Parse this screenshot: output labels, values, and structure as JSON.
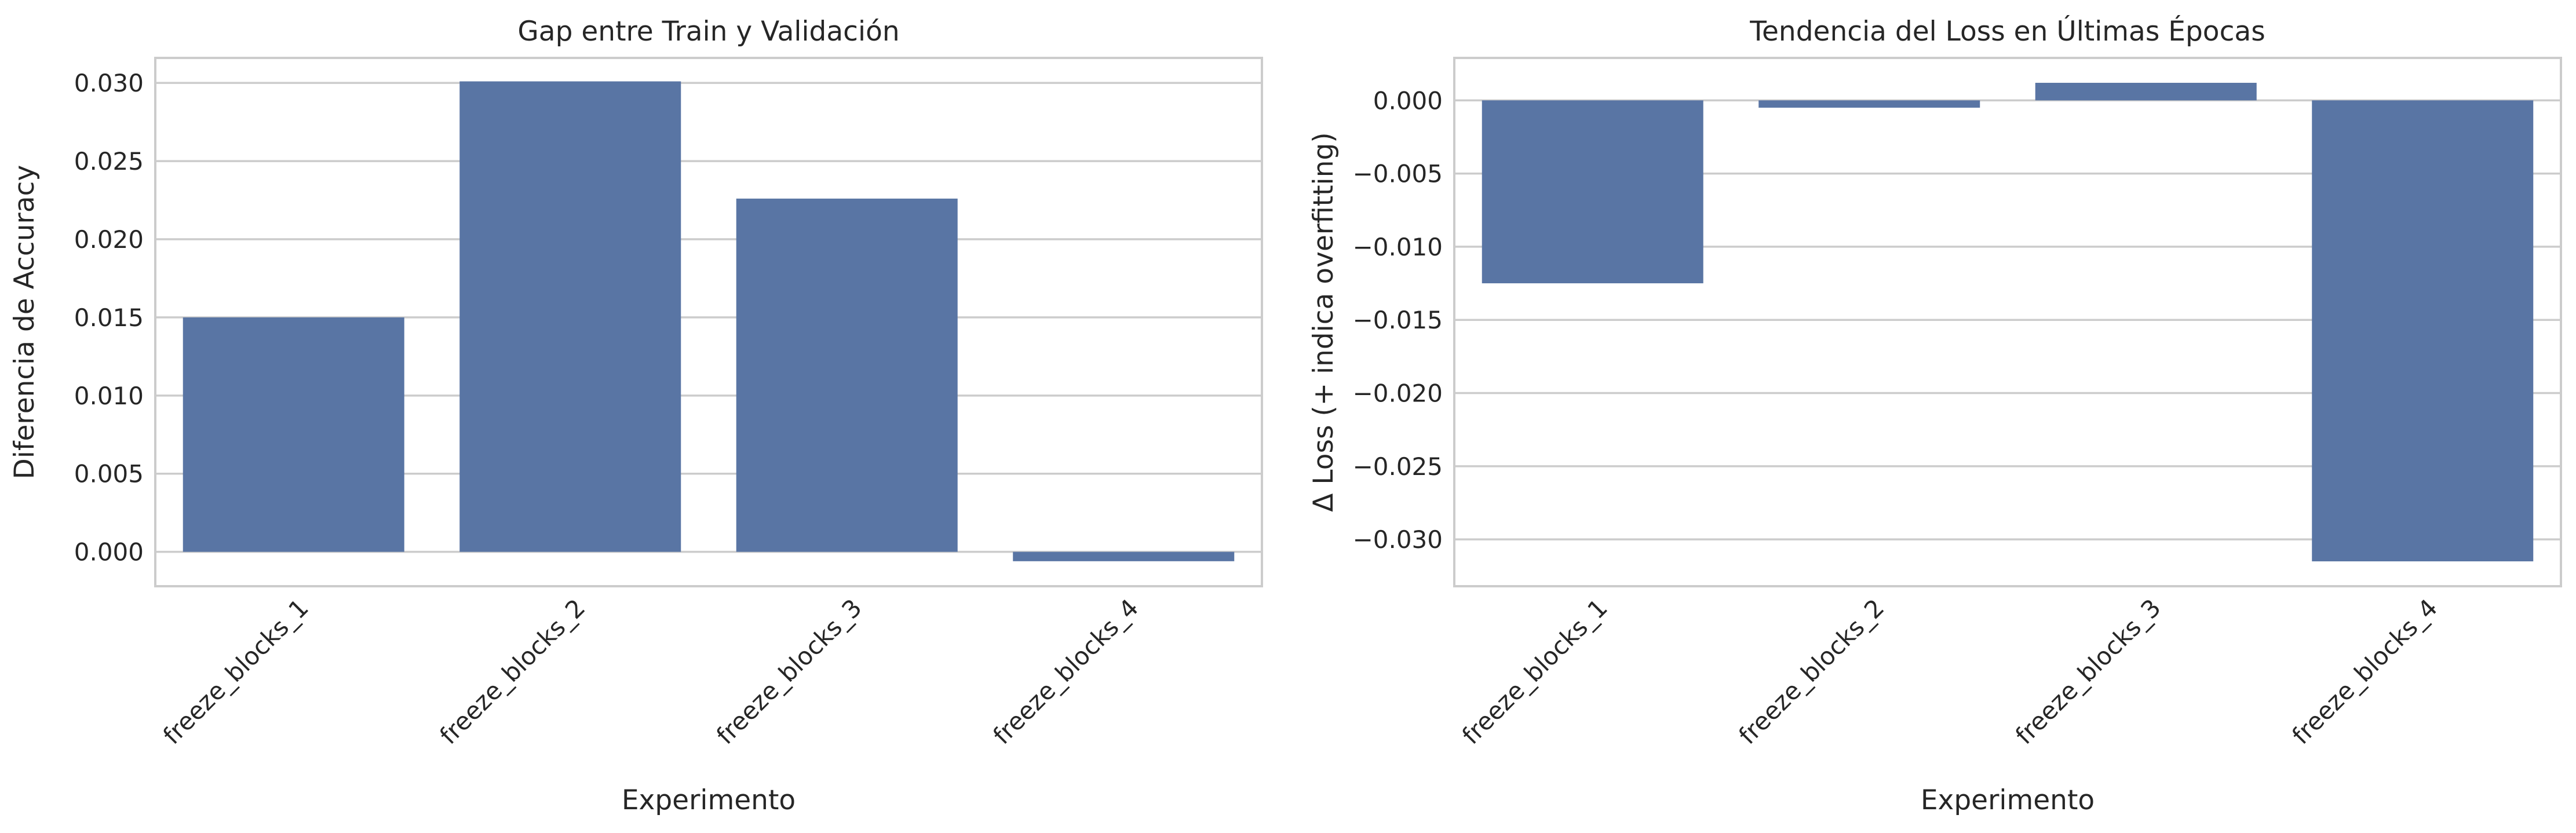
{
  "colors": {
    "bar": "#5975a4",
    "grid": "#cccccc",
    "text": "#262626",
    "background": "#ffffff"
  },
  "chart_data": [
    {
      "type": "bar",
      "title": "Gap entre Train y Validación",
      "xlabel": "Experimento",
      "ylabel": "Diferencia de Accuracy",
      "categories": [
        "freeze_blocks_1",
        "freeze_blocks_2",
        "freeze_blocks_3",
        "freeze_blocks_4"
      ],
      "values": [
        0.015,
        0.0301,
        0.0226,
        -0.0006
      ],
      "ylim": [
        -0.0022,
        0.0316
      ],
      "yticks": [
        "0.000",
        "0.005",
        "0.010",
        "0.015",
        "0.020",
        "0.025",
        "0.030"
      ],
      "grid": true,
      "legend": "none"
    },
    {
      "type": "bar",
      "title": "Tendencia del Loss en Últimas Épocas",
      "xlabel": "Experimento",
      "ylabel": "Δ Loss (+ indica overfitting)",
      "categories": [
        "freeze_blocks_1",
        "freeze_blocks_2",
        "freeze_blocks_3",
        "freeze_blocks_4"
      ],
      "values": [
        -0.0125,
        -0.0005,
        0.0012,
        -0.0315
      ],
      "ylim": [
        -0.0332,
        0.0029
      ],
      "yticks": [
        "0.000",
        "−0.005",
        "−0.010",
        "−0.015",
        "−0.020",
        "−0.025",
        "−0.030"
      ],
      "grid": true,
      "legend": "none"
    }
  ]
}
